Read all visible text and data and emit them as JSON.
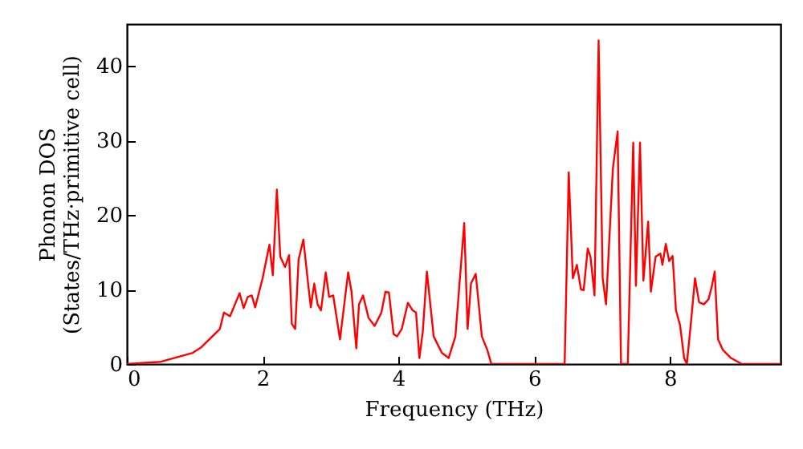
{
  "chart_data": {
    "type": "line",
    "xlabel": "Frequency (THz)",
    "ylabel": "Phonon DOS\n(States/THz·primitive cell)",
    "xlim": [
      0,
      9.63
    ],
    "ylim": [
      0,
      45.6
    ],
    "xticks": [
      0,
      2,
      4,
      6,
      8
    ],
    "yticks": [
      0,
      10,
      20,
      30,
      40
    ],
    "series": [
      {
        "color": "#ff0000",
        "x": [
          0,
          0.5,
          0.97,
          1.09,
          1.37,
          1.43,
          1.52,
          1.66,
          1.72,
          1.78,
          1.84,
          1.89,
          2.0,
          2.1,
          2.15,
          2.21,
          2.26,
          2.33,
          2.39,
          2.43,
          2.48,
          2.53,
          2.6,
          2.67,
          2.71,
          2.76,
          2.81,
          2.86,
          2.93,
          2.98,
          3.04,
          3.14,
          3.26,
          3.31,
          3.38,
          3.42,
          3.48,
          3.56,
          3.65,
          3.75,
          3.81,
          3.86,
          3.93,
          3.98,
          4.05,
          4.14,
          4.21,
          4.26,
          4.31,
          4.36,
          4.42,
          4.52,
          4.64,
          4.74,
          4.84,
          4.97,
          5.02,
          5.07,
          5.14,
          5.23,
          5.31,
          5.37,
          6.45,
          6.51,
          6.57,
          6.63,
          6.69,
          6.73,
          6.79,
          6.83,
          6.89,
          6.95,
          7.01,
          7.06,
          7.16,
          7.23,
          7.28,
          7.38,
          7.46,
          7.5,
          7.56,
          7.61,
          7.68,
          7.72,
          7.79,
          7.86,
          7.89,
          7.94,
          7.99,
          8.04,
          8.09,
          8.15,
          8.21,
          8.25,
          8.32,
          8.37,
          8.43,
          8.5,
          8.57,
          8.62,
          8.66,
          8.71,
          8.78,
          8.9,
          9.06,
          9.63
        ],
        "values": [
          0,
          0.3,
          1.5,
          2.2,
          4.7,
          6.9,
          6.4,
          9.5,
          7.5,
          9.0,
          9.2,
          7.6,
          11.5,
          16.0,
          11.9,
          23.4,
          14.4,
          13.0,
          14.6,
          5.4,
          4.7,
          14.0,
          16.7,
          10.8,
          7.6,
          10.8,
          8.0,
          7.2,
          12.3,
          9.0,
          9.2,
          3.3,
          12.3,
          9.7,
          2.1,
          8.0,
          9.2,
          6.2,
          5.1,
          6.9,
          9.7,
          9.6,
          4.0,
          3.7,
          4.7,
          8.2,
          7.2,
          6.9,
          0.8,
          4.4,
          12.4,
          3.7,
          1.5,
          0.8,
          3.7,
          18.9,
          4.7,
          10.8,
          12.1,
          3.7,
          1.9,
          0,
          0,
          25.7,
          11.5,
          13.3,
          10.0,
          9.9,
          15.5,
          14.4,
          9.2,
          43.4,
          11.5,
          8.0,
          26.2,
          31.2,
          0,
          0,
          29.7,
          10.5,
          29.7,
          11.2,
          19.1,
          9.7,
          14.4,
          14.8,
          13.3,
          16.1,
          13.8,
          14.5,
          7.2,
          5.2,
          0.8,
          0,
          6.5,
          11.5,
          8.3,
          8.0,
          8.7,
          10.5,
          12.4,
          3.3,
          1.9,
          0.8,
          0,
          0
        ]
      }
    ]
  }
}
